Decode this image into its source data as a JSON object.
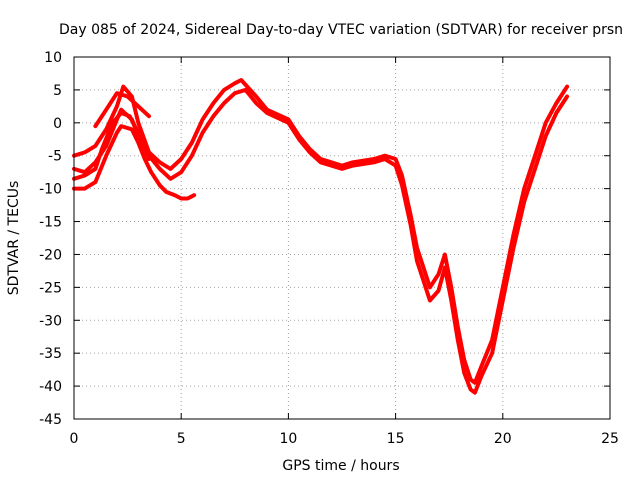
{
  "chart_data": {
    "type": "line",
    "title": "Day 085 of 2024, Sidereal Day-to-day VTEC variation (SDTVAR) for receiver prsn",
    "xlabel": "GPS time / hours",
    "ylabel": "SDTVAR / TECUs",
    "xlim": [
      0,
      25
    ],
    "ylim": [
      -45,
      10
    ],
    "xticks": [
      0,
      5,
      10,
      15,
      20,
      25
    ],
    "yticks": [
      -45,
      -40,
      -35,
      -30,
      -25,
      -20,
      -15,
      -10,
      -5,
      0,
      5,
      10
    ],
    "grid": true,
    "color": "#ff0000",
    "series": [
      {
        "name": "series-1",
        "x": [
          0.0,
          0.5,
          1.0,
          1.5,
          2.0,
          2.3,
          2.7,
          3.0,
          3.5,
          4.0,
          4.5,
          5.0,
          5.5,
          6.0,
          6.5,
          7.0,
          7.5,
          7.8,
          8.5,
          9.0,
          10.0,
          10.5,
          11.0,
          11.5,
          12.0,
          12.5,
          13.0,
          14.0,
          14.5,
          15.0,
          15.3,
          15.7,
          16.0,
          16.3,
          16.6,
          17.0,
          17.3,
          17.6,
          17.9,
          18.2,
          18.5,
          18.7,
          19.0,
          19.5,
          20.0,
          20.5,
          21.0,
          21.5,
          22.0,
          22.5,
          23.0
        ],
        "y": [
          -5.0,
          -4.5,
          -3.5,
          -1.0,
          2.5,
          5.5,
          4.0,
          0.0,
          -4.5,
          -6.0,
          -7.0,
          -5.5,
          -3.0,
          0.5,
          3.0,
          5.0,
          6.0,
          6.5,
          4.0,
          2.0,
          0.5,
          -2.0,
          -4.0,
          -5.5,
          -6.0,
          -6.5,
          -6.0,
          -5.5,
          -5.0,
          -5.5,
          -8.0,
          -14.0,
          -19.0,
          -22.0,
          -25.0,
          -23.0,
          -20.0,
          -25.0,
          -31.0,
          -36.0,
          -39.0,
          -39.5,
          -37.0,
          -33.0,
          -25.0,
          -17.0,
          -10.0,
          -5.0,
          0.0,
          3.0,
          5.5
        ]
      },
      {
        "name": "series-2",
        "x": [
          0.0,
          0.5,
          1.0,
          1.5,
          2.0,
          2.2,
          2.7,
          3.0,
          3.5,
          4.0,
          4.5,
          5.0,
          5.5,
          6.0,
          6.5,
          7.0,
          7.5,
          8.0,
          8.5,
          9.0,
          10.0,
          10.5,
          11.0,
          11.5,
          12.0,
          12.5,
          13.0,
          14.0,
          14.5,
          15.0,
          15.3,
          15.7,
          16.0,
          16.3,
          16.6,
          17.0,
          17.3,
          17.6,
          17.9,
          18.2,
          18.5,
          18.7,
          19.0,
          19.5,
          20.0,
          20.5,
          21.0,
          21.5,
          22.0,
          22.5,
          23.0
        ],
        "y": [
          -7.0,
          -7.5,
          -6.0,
          -3.5,
          0.5,
          2.0,
          0.5,
          -2.0,
          -5.0,
          -7.0,
          -8.5,
          -7.5,
          -5.0,
          -1.5,
          1.0,
          3.0,
          4.5,
          5.0,
          3.0,
          1.5,
          0.0,
          -2.5,
          -4.5,
          -6.0,
          -6.5,
          -7.0,
          -6.5,
          -6.0,
          -5.5,
          -6.5,
          -9.5,
          -15.5,
          -21.0,
          -24.0,
          -27.0,
          -25.5,
          -22.0,
          -27.0,
          -33.0,
          -38.0,
          -40.5,
          -41.0,
          -38.5,
          -35.0,
          -27.0,
          -19.0,
          -12.0,
          -7.0,
          -2.0,
          1.5,
          4.0
        ]
      },
      {
        "name": "series-3",
        "x": [
          0.0,
          0.5,
          1.0,
          1.5,
          2.0,
          2.2,
          2.7,
          3.0,
          3.3,
          3.6,
          4.0,
          4.3,
          4.7,
          5.0,
          5.3,
          5.6
        ],
        "y": [
          -10.0,
          -10.0,
          -9.0,
          -5.0,
          -1.5,
          -0.5,
          -1.0,
          -3.0,
          -5.5,
          -7.5,
          -9.5,
          -10.5,
          -11.0,
          -11.5,
          -11.5,
          -11.0
        ]
      },
      {
        "name": "series-4",
        "x": [
          0.0,
          0.5,
          1.0,
          1.3,
          1.8,
          2.2,
          2.6,
          3.0,
          3.5
        ],
        "y": [
          -8.5,
          -8.0,
          -7.0,
          -4.0,
          0.0,
          1.5,
          1.0,
          -1.5,
          -5.5
        ]
      },
      {
        "name": "series-5",
        "x": [
          1.0,
          1.5,
          2.0,
          2.5,
          3.0,
          3.5
        ],
        "y": [
          -0.5,
          2.0,
          4.5,
          4.0,
          2.5,
          1.0
        ]
      }
    ]
  }
}
